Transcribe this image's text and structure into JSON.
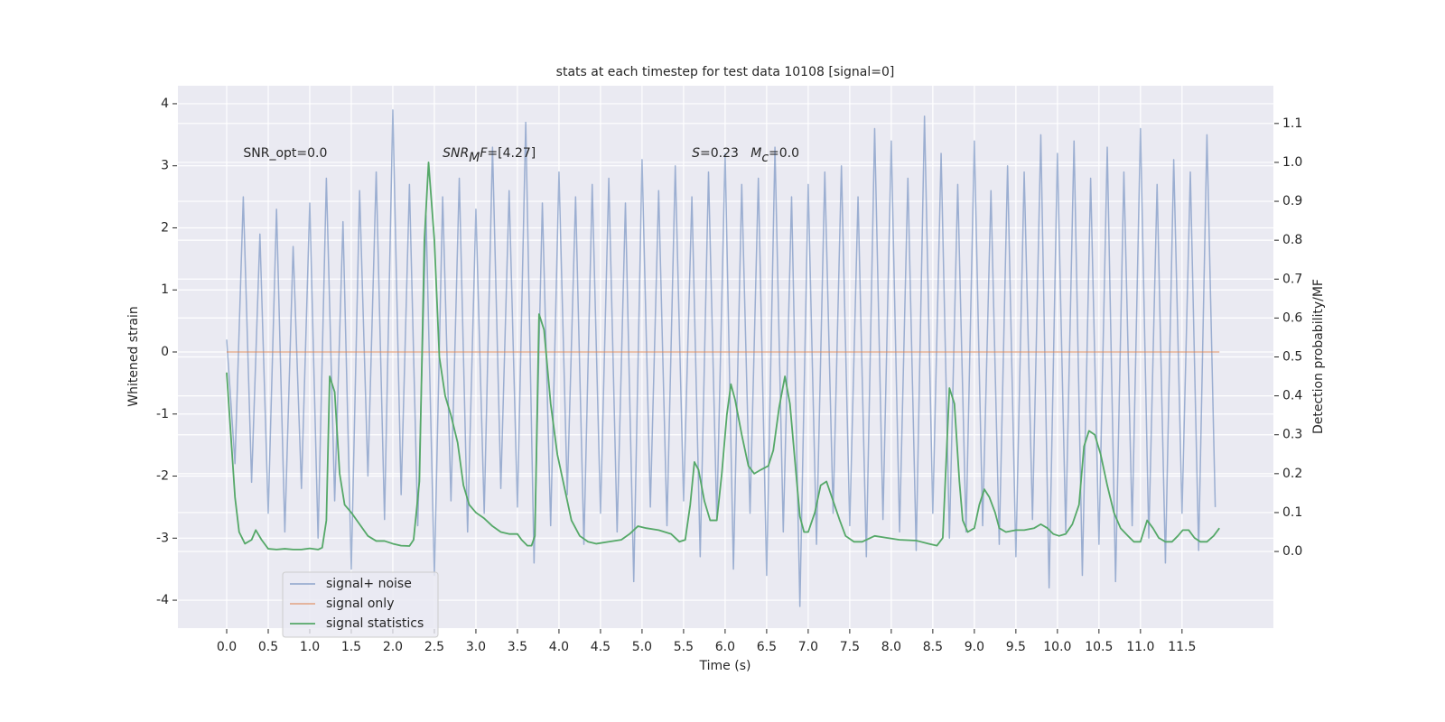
{
  "chart_data": {
    "type": "line",
    "title": "stats at each timestep for test data 10108 [signal=0]",
    "xlabel": "Time (s)",
    "ylabel": "Whitened strain",
    "y2label": "Detection probability/MF",
    "xlim": [
      -0.587,
      12.6
    ],
    "ylim": [
      -4.45,
      4.29
    ],
    "y2lim": [
      -0.197,
      1.197
    ],
    "xticks": [
      {
        "value": 0,
        "label": "0.0"
      },
      0.5,
      {
        "value": 1,
        "label": "1.0"
      },
      1.5,
      {
        "value": 2,
        "label": "2.0"
      },
      2.5,
      {
        "value": 3,
        "label": "3.0"
      },
      3.5,
      {
        "value": 4,
        "label": "4.0"
      },
      4.5,
      {
        "value": 5,
        "label": "5.0"
      },
      5.5,
      {
        "value": 6,
        "label": "6.0"
      },
      6.5,
      {
        "value": 7,
        "label": "7.0"
      },
      7.5,
      {
        "value": 8,
        "label": "8.0"
      },
      8.5,
      {
        "value": 9,
        "label": "9.0"
      },
      9.5,
      {
        "value": 10,
        "label": "10.0"
      },
      10.5,
      {
        "value": 11,
        "label": "11.0"
      },
      11.5
    ],
    "yticks": [
      -4,
      -3,
      -2,
      -1,
      0,
      1,
      2,
      3,
      4
    ],
    "y2ticks": [
      {
        "value": 0,
        "label": "0.0"
      },
      0.1,
      0.2,
      0.3,
      0.4,
      0.5,
      0.6,
      0.7,
      0.8,
      0.9,
      {
        "value": 1,
        "label": "1.0"
      },
      1.1
    ],
    "grid": true,
    "legend": "lower left",
    "annotations": [
      {
        "x": 0.2,
        "y": 3.2,
        "parts": [
          {
            "text": "SNR_opt=0.0",
            "style": "normal"
          }
        ]
      },
      {
        "x": 2.6,
        "y": 3.2,
        "parts": [
          {
            "text": "SNR",
            "style": "italic"
          },
          {
            "text": "M",
            "style": "italic-sub"
          },
          {
            "text": "F",
            "style": "italic"
          },
          {
            "text": "=[4.27]",
            "style": "normal"
          }
        ]
      },
      {
        "x": 5.6,
        "y": 3.2,
        "parts": [
          {
            "text": "S",
            "style": "italic"
          },
          {
            "text": "=0.23   ",
            "style": "normal"
          },
          {
            "text": "M",
            "style": "italic"
          },
          {
            "text": "c",
            "style": "italic-sub"
          },
          {
            "text": "=0.0",
            "style": "normal"
          }
        ]
      }
    ],
    "series": [
      {
        "name": "signal+ noise",
        "color": "#4c72b0",
        "opacity": 0.5,
        "x": [
          0.0,
          0.1,
          0.2,
          0.3,
          0.4,
          0.5,
          0.6,
          0.7,
          0.8,
          0.9,
          1.0,
          1.1,
          1.2,
          1.3,
          1.4,
          1.5,
          1.6,
          1.7,
          1.8,
          1.9,
          2.0,
          2.1,
          2.2,
          2.3,
          2.4,
          2.5,
          2.6,
          2.7,
          2.8,
          2.9,
          3.0,
          3.1,
          3.2,
          3.3,
          3.4,
          3.5,
          3.6,
          3.7,
          3.8,
          3.9,
          4.0,
          4.1,
          4.2,
          4.3,
          4.4,
          4.5,
          4.6,
          4.7,
          4.8,
          4.9,
          5.0,
          5.1,
          5.2,
          5.3,
          5.4,
          5.5,
          5.6,
          5.7,
          5.8,
          5.9,
          6.0,
          6.1,
          6.2,
          6.3,
          6.4,
          6.5,
          6.6,
          6.7,
          6.8,
          6.9,
          7.0,
          7.1,
          7.2,
          7.3,
          7.4,
          7.5,
          7.6,
          7.7,
          7.8,
          7.9,
          8.0,
          8.1,
          8.2,
          8.3,
          8.4,
          8.5,
          8.6,
          8.7,
          8.8,
          8.9,
          9.0,
          9.1,
          9.2,
          9.3,
          9.4,
          9.5,
          9.6,
          9.7,
          9.8,
          9.9,
          10.0,
          10.1,
          10.2,
          10.3,
          10.4,
          10.5,
          10.6,
          10.7,
          10.8,
          10.9,
          11.0,
          11.1,
          11.2,
          11.3,
          11.4,
          11.5,
          11.6,
          11.7,
          11.8,
          11.9
        ],
        "values": [
          0.2,
          -1.8,
          2.5,
          -2.1,
          1.9,
          -2.6,
          2.3,
          -2.9,
          1.7,
          -2.2,
          2.4,
          -3.0,
          2.8,
          -2.4,
          2.1,
          -3.5,
          2.6,
          -2.0,
          2.9,
          -2.7,
          3.9,
          -2.3,
          2.7,
          -2.8,
          2.2,
          -3.6,
          2.5,
          -2.4,
          2.8,
          -2.9,
          2.3,
          -2.6,
          3.3,
          -2.2,
          2.6,
          -2.5,
          3.7,
          -3.4,
          2.4,
          -2.8,
          2.9,
          -2.3,
          2.5,
          -3.1,
          2.7,
          -2.6,
          2.8,
          -2.9,
          2.4,
          -3.7,
          3.1,
          -2.5,
          2.6,
          -2.8,
          3.0,
          -2.4,
          2.5,
          -3.3,
          2.9,
          -2.7,
          3.2,
          -3.5,
          2.7,
          -2.6,
          2.8,
          -3.6,
          3.3,
          -2.9,
          2.5,
          -4.1,
          2.7,
          -3.1,
          2.9,
          -2.6,
          3.0,
          -2.8,
          2.5,
          -3.3,
          3.6,
          -2.7,
          3.4,
          -2.9,
          2.8,
          -3.2,
          3.8,
          -2.6,
          3.2,
          -3.0,
          2.7,
          -2.9,
          3.4,
          -2.8,
          2.6,
          -3.1,
          3.0,
          -3.3,
          2.9,
          -2.7,
          3.5,
          -3.8,
          3.2,
          -2.9,
          3.4,
          -3.6,
          2.8,
          -3.1,
          3.3,
          -3.7,
          2.9,
          -2.8,
          3.6,
          -3.0,
          2.7,
          -3.4,
          3.1,
          -2.6,
          2.9,
          -3.2,
          3.5,
          -2.5
        ]
      },
      {
        "name": "signal only",
        "color": "#dd8452",
        "opacity": 0.6,
        "x": [
          0.0,
          11.95
        ],
        "values": [
          0,
          0
        ]
      },
      {
        "name": "signal statistics",
        "color": "#55a868",
        "opacity": 1,
        "axis": "y2",
        "x": [
          0.0,
          0.05,
          0.1,
          0.15,
          0.22,
          0.3,
          0.35,
          0.42,
          0.5,
          0.6,
          0.7,
          0.8,
          0.9,
          1.0,
          1.1,
          1.15,
          1.2,
          1.24,
          1.3,
          1.36,
          1.42,
          1.5,
          1.6,
          1.7,
          1.8,
          1.9,
          2.0,
          2.1,
          2.2,
          2.25,
          2.32,
          2.38,
          2.43,
          2.5,
          2.56,
          2.63,
          2.7,
          2.78,
          2.85,
          2.92,
          3.0,
          3.1,
          3.2,
          3.3,
          3.4,
          3.5,
          3.55,
          3.62,
          3.67,
          3.71,
          3.76,
          3.82,
          3.9,
          3.98,
          4.05,
          4.15,
          4.25,
          4.35,
          4.45,
          4.6,
          4.75,
          4.85,
          4.95,
          5.05,
          5.2,
          5.35,
          5.45,
          5.52,
          5.58,
          5.63,
          5.68,
          5.75,
          5.82,
          5.9,
          5.96,
          6.02,
          6.07,
          6.12,
          6.2,
          6.28,
          6.35,
          6.43,
          6.52,
          6.58,
          6.65,
          6.72,
          6.78,
          6.85,
          6.9,
          6.95,
          7.0,
          7.08,
          7.15,
          7.22,
          7.3,
          7.38,
          7.45,
          7.55,
          7.65,
          7.8,
          7.95,
          8.1,
          8.3,
          8.45,
          8.55,
          8.62,
          8.7,
          8.76,
          8.82,
          8.86,
          8.92,
          9.0,
          9.06,
          9.12,
          9.18,
          9.25,
          9.3,
          9.38,
          9.5,
          9.6,
          9.72,
          9.8,
          9.88,
          9.95,
          10.02,
          10.1,
          10.18,
          10.26,
          10.32,
          10.38,
          10.45,
          10.52,
          10.6,
          10.68,
          10.76,
          10.85,
          10.92,
          11.0,
          11.08,
          11.15,
          11.22,
          11.3,
          11.38,
          11.45,
          11.51,
          11.58,
          11.65,
          11.72,
          11.8,
          11.88,
          11.95
        ],
        "values": [
          0.46,
          0.3,
          0.14,
          0.05,
          0.02,
          0.03,
          0.055,
          0.03,
          0.007,
          0.005,
          0.007,
          0.005,
          0.005,
          0.008,
          0.005,
          0.01,
          0.08,
          0.45,
          0.41,
          0.2,
          0.12,
          0.1,
          0.07,
          0.04,
          0.027,
          0.027,
          0.02,
          0.015,
          0.014,
          0.03,
          0.18,
          0.8,
          1.0,
          0.8,
          0.5,
          0.4,
          0.35,
          0.28,
          0.17,
          0.12,
          0.1,
          0.085,
          0.065,
          0.05,
          0.045,
          0.045,
          0.03,
          0.015,
          0.015,
          0.04,
          0.61,
          0.57,
          0.38,
          0.25,
          0.18,
          0.08,
          0.04,
          0.025,
          0.02,
          0.025,
          0.03,
          0.045,
          0.065,
          0.06,
          0.055,
          0.045,
          0.025,
          0.03,
          0.12,
          0.23,
          0.21,
          0.13,
          0.08,
          0.08,
          0.2,
          0.35,
          0.43,
          0.39,
          0.3,
          0.22,
          0.2,
          0.21,
          0.22,
          0.26,
          0.37,
          0.45,
          0.38,
          0.21,
          0.09,
          0.05,
          0.05,
          0.1,
          0.17,
          0.18,
          0.13,
          0.08,
          0.04,
          0.025,
          0.025,
          0.04,
          0.035,
          0.03,
          0.028,
          0.02,
          0.015,
          0.035,
          0.42,
          0.38,
          0.18,
          0.08,
          0.05,
          0.06,
          0.12,
          0.16,
          0.14,
          0.1,
          0.06,
          0.05,
          0.055,
          0.055,
          0.06,
          0.07,
          0.06,
          0.045,
          0.04,
          0.045,
          0.07,
          0.12,
          0.27,
          0.31,
          0.3,
          0.25,
          0.17,
          0.1,
          0.06,
          0.04,
          0.025,
          0.025,
          0.08,
          0.06,
          0.035,
          0.025,
          0.025,
          0.04,
          0.055,
          0.055,
          0.035,
          0.025,
          0.025,
          0.04,
          0.06
        ]
      }
    ]
  }
}
